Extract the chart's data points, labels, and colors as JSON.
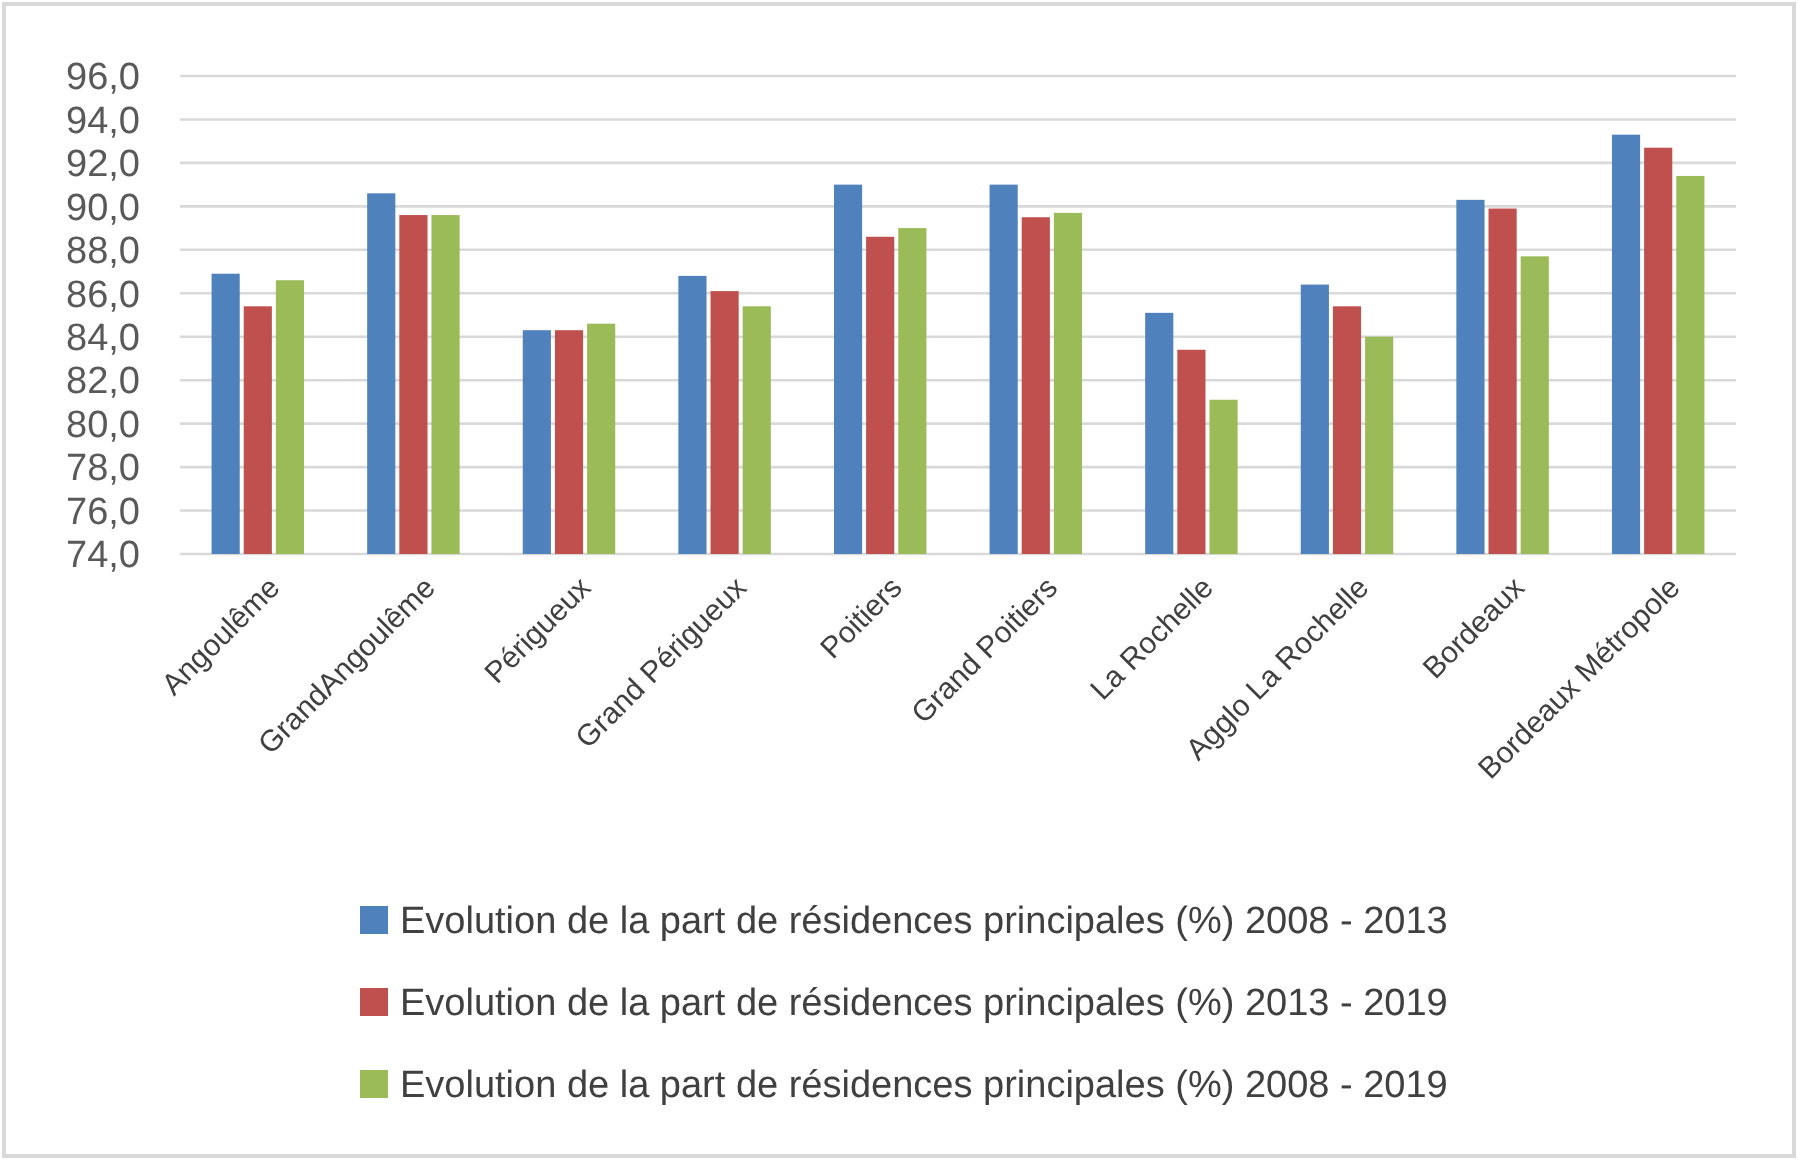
{
  "chart_data": {
    "type": "bar",
    "categories": [
      "Angoulême",
      "GrandAngoulême",
      "Périgueux",
      "Grand Périgueux",
      "Poitiers",
      "Grand Poitiers",
      "La Rochelle",
      "Agglo La Rochelle",
      "Bordeaux",
      "Bordeaux Métropole"
    ],
    "series": [
      {
        "name": "Evolution de la part de résidences principales (%) 2008 - 2013",
        "color": "#4f81bd",
        "values": [
          86.9,
          90.6,
          84.3,
          86.8,
          91.0,
          91.0,
          85.1,
          86.4,
          90.3,
          93.3
        ]
      },
      {
        "name": "Evolution de la part de résidences principales (%) 2013 - 2019",
        "color": "#c0504d",
        "values": [
          85.4,
          89.6,
          84.3,
          86.1,
          88.6,
          89.5,
          83.4,
          85.4,
          89.9,
          92.7
        ]
      },
      {
        "name": "Evolution de la part de résidences principales (%) 2008 - 2019",
        "color": "#9bbb59",
        "values": [
          86.6,
          89.6,
          84.6,
          85.4,
          89.0,
          89.7,
          81.1,
          84.0,
          87.7,
          91.4
        ]
      }
    ],
    "ylim": [
      74,
      96
    ],
    "yticks": [
      {
        "value": 74,
        "label": "74,0"
      },
      {
        "value": 76,
        "label": "76,0"
      },
      {
        "value": 78,
        "label": "78,0"
      },
      {
        "value": 80,
        "label": "80,0"
      },
      {
        "value": 82,
        "label": "82,0"
      },
      {
        "value": 84,
        "label": "84,0"
      },
      {
        "value": 86,
        "label": "86,0"
      },
      {
        "value": 88,
        "label": "88,0"
      },
      {
        "value": 90,
        "label": "90,0"
      },
      {
        "value": 92,
        "label": "92,0"
      },
      {
        "value": 94,
        "label": "94,0"
      },
      {
        "value": 96,
        "label": "96,0"
      }
    ],
    "grid": "y",
    "legend": "bottom"
  }
}
